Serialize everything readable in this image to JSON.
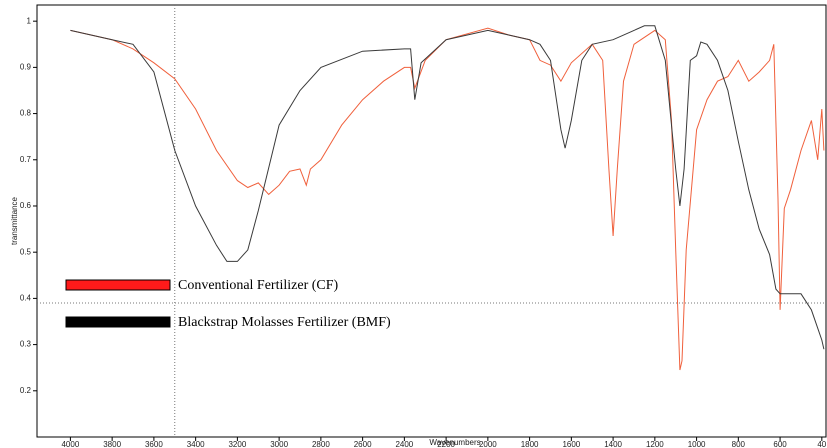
{
  "chart_data": {
    "type": "line",
    "xlabel": "Wavenumbers",
    "ylabel": "transmittance",
    "xlim": [
      4160,
      380
    ],
    "ylim": [
      0.1,
      1.035
    ],
    "x_reversed": true,
    "xticks": [
      4000,
      3800,
      3600,
      3400,
      3200,
      3000,
      2800,
      2600,
      2400,
      2200,
      2000,
      1800,
      1600,
      1400,
      1200,
      1000,
      800,
      600,
      {
        "value": 400,
        "label": "40"
      }
    ],
    "yticks": [
      0.2,
      0.3,
      0.4,
      0.5,
      0.6,
      0.7,
      0.8,
      0.9,
      1
    ],
    "cursor": {
      "x": 3500,
      "y": 0.39
    },
    "series": [
      {
        "name": "Conventional Fertilizer (CF)",
        "color": "#f0603c",
        "legend_color": "#ff1a1a",
        "x": [
          4000,
          3800,
          3700,
          3600,
          3500,
          3400,
          3300,
          3200,
          3150,
          3100,
          3050,
          3000,
          2950,
          2900,
          2870,
          2850,
          2800,
          2700,
          2600,
          2500,
          2400,
          2370,
          2350,
          2300,
          2200,
          2000,
          1900,
          1800,
          1750,
          1700,
          1650,
          1600,
          1500,
          1450,
          1420,
          1400,
          1380,
          1350,
          1300,
          1200,
          1150,
          1120,
          1100,
          1080,
          1070,
          1050,
          1000,
          950,
          900,
          850,
          800,
          750,
          700,
          650,
          630,
          610,
          600,
          580,
          550,
          500,
          450,
          420,
          400,
          390
        ],
        "values": [
          0.98,
          0.96,
          0.94,
          0.91,
          0.875,
          0.81,
          0.72,
          0.655,
          0.64,
          0.65,
          0.625,
          0.645,
          0.675,
          0.68,
          0.645,
          0.68,
          0.7,
          0.775,
          0.83,
          0.87,
          0.9,
          0.9,
          0.855,
          0.915,
          0.96,
          0.985,
          0.97,
          0.96,
          0.915,
          0.905,
          0.87,
          0.91,
          0.95,
          0.915,
          0.68,
          0.535,
          0.68,
          0.87,
          0.95,
          0.98,
          0.96,
          0.785,
          0.505,
          0.245,
          0.265,
          0.505,
          0.765,
          0.83,
          0.87,
          0.88,
          0.915,
          0.87,
          0.89,
          0.915,
          0.95,
          0.615,
          0.375,
          0.595,
          0.635,
          0.72,
          0.785,
          0.7,
          0.81,
          0.72
        ]
      },
      {
        "name": "Blackstrap Molasses Fertilizer (BMF)",
        "color": "#3a3a3a",
        "legend_color": "#000000",
        "x": [
          4000,
          3800,
          3700,
          3600,
          3500,
          3400,
          3300,
          3250,
          3200,
          3150,
          3100,
          3000,
          2900,
          2800,
          2600,
          2400,
          2370,
          2350,
          2320,
          2200,
          2000,
          1900,
          1800,
          1750,
          1700,
          1650,
          1630,
          1600,
          1550,
          1500,
          1400,
          1300,
          1250,
          1200,
          1150,
          1100,
          1080,
          1060,
          1030,
          1000,
          980,
          950,
          900,
          850,
          800,
          750,
          700,
          650,
          620,
          600,
          550,
          500,
          450,
          400,
          390
        ],
        "values": [
          0.98,
          0.96,
          0.95,
          0.89,
          0.72,
          0.6,
          0.515,
          0.48,
          0.48,
          0.505,
          0.59,
          0.775,
          0.85,
          0.9,
          0.935,
          0.94,
          0.94,
          0.83,
          0.91,
          0.96,
          0.98,
          0.97,
          0.96,
          0.95,
          0.915,
          0.765,
          0.725,
          0.785,
          0.915,
          0.95,
          0.96,
          0.98,
          0.99,
          0.99,
          0.915,
          0.68,
          0.6,
          0.68,
          0.915,
          0.925,
          0.955,
          0.95,
          0.915,
          0.85,
          0.74,
          0.635,
          0.55,
          0.495,
          0.42,
          0.41,
          0.41,
          0.41,
          0.375,
          0.31,
          0.29
        ]
      }
    ]
  }
}
